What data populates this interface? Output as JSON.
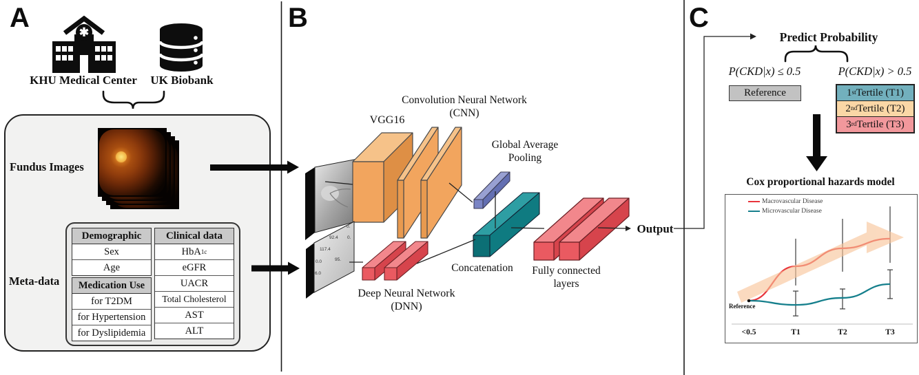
{
  "panelA": {
    "label": "A",
    "sources": [
      {
        "name": "KHU Medical Center",
        "icon": "hospital-icon"
      },
      {
        "name": "UK Biobank",
        "icon": "database-icon"
      }
    ],
    "fundus_label": "Fundus Images",
    "metadata_label": "Meta-data",
    "tables": {
      "demographic": {
        "header": "Demographic",
        "rows": [
          "Sex",
          "Age"
        ]
      },
      "medication": {
        "header": "Medication Use",
        "rows": [
          "for T2DM",
          "for Hypertension",
          "for Dyslipidemia"
        ]
      },
      "clinical": {
        "header": "Clinical data",
        "first": {
          "text": "HbA",
          "sub": "1c"
        },
        "rest": [
          "eGFR",
          "UACR",
          "Total Cholesterol",
          "AST",
          "ALT"
        ]
      }
    }
  },
  "panelB": {
    "label": "B",
    "vgg_label": "VGG16",
    "cnn_label_1": "Convolution Neural Network",
    "cnn_label_2": "(CNN)",
    "gap_label_1": "Global Average",
    "gap_label_2": "Pooling",
    "concat_label": "Concatenation",
    "dnn_label_1": "Deep Neural Network",
    "dnn_label_2": "(DNN)",
    "fc_label_1": "Fully connected",
    "fc_label_2": "layers",
    "output_label": "Output",
    "matrix_values": [
      "0.",
      "92.4",
      "0.",
      "117.4",
      "0.0",
      "95.",
      "6.0"
    ]
  },
  "panelC": {
    "label": "C",
    "predict_label": "Predict Probability",
    "left_expr": "P(CKD|x) ≤ 0.5",
    "right_expr": "P(CKD|x) > 0.5",
    "reference_label": "Reference",
    "tertiles": [
      {
        "ord": "1",
        "sup": "st",
        "rest": " Tertile (T1)",
        "color": "#72B0BD"
      },
      {
        "ord": "2",
        "sup": "nd",
        "rest": " Tertile (T2)",
        "color": "#FAD7A6"
      },
      {
        "ord": "3",
        "sup": "rd",
        "rest": " Tertile (T3)",
        "color": "#F2989C"
      }
    ],
    "chart_data": {
      "type": "line",
      "title": "Cox proportional hazards model",
      "categories": [
        "<0.5",
        "T1",
        "T2",
        "T3"
      ],
      "series": [
        {
          "name": "Macrovascular Disease",
          "color": "#E8343B",
          "caps": false,
          "values": [
            1.0,
            2.47,
            3.24,
            3.65
          ],
          "ci_low": [
            null,
            1.65,
            2.24,
            2.62
          ],
          "ci_high": [
            null,
            3.65,
            4.5,
            5.03
          ]
        },
        {
          "name": "Microvascular Disease",
          "color": "#157F8C",
          "caps": true,
          "values": [
            1.0,
            0.82,
            1.12,
            1.71
          ],
          "ci_low": [
            null,
            0.35,
            0.65,
            1.09
          ],
          "ci_high": [
            null,
            1.41,
            1.5,
            2.32
          ]
        }
      ],
      "annotation": "Reference",
      "xlabel": "",
      "ylabel": "",
      "ylim": [
        0,
        5.6
      ],
      "grid": false,
      "legend_position": "top-left",
      "trend_arrow_color": "#F8C498"
    }
  },
  "colors": {
    "cnn_orange": "#F2A55E",
    "cnn_orange_top": "#F6C289",
    "cnn_orange_side": "#DE8F45",
    "fc_red": "#EA5A61",
    "fc_red_top": "#F2878C",
    "fc_red_side": "#D6444C",
    "concat_teal": "#0F7B81",
    "concat_teal_top": "#2E9EA3",
    "gap_purple": "#636FB2",
    "gap_purple_top": "#98A0D2",
    "reference_gray": "#C2C2C2",
    "table_header_gray": "#C9C9C9",
    "panel_bg": "#F2F2F1"
  }
}
